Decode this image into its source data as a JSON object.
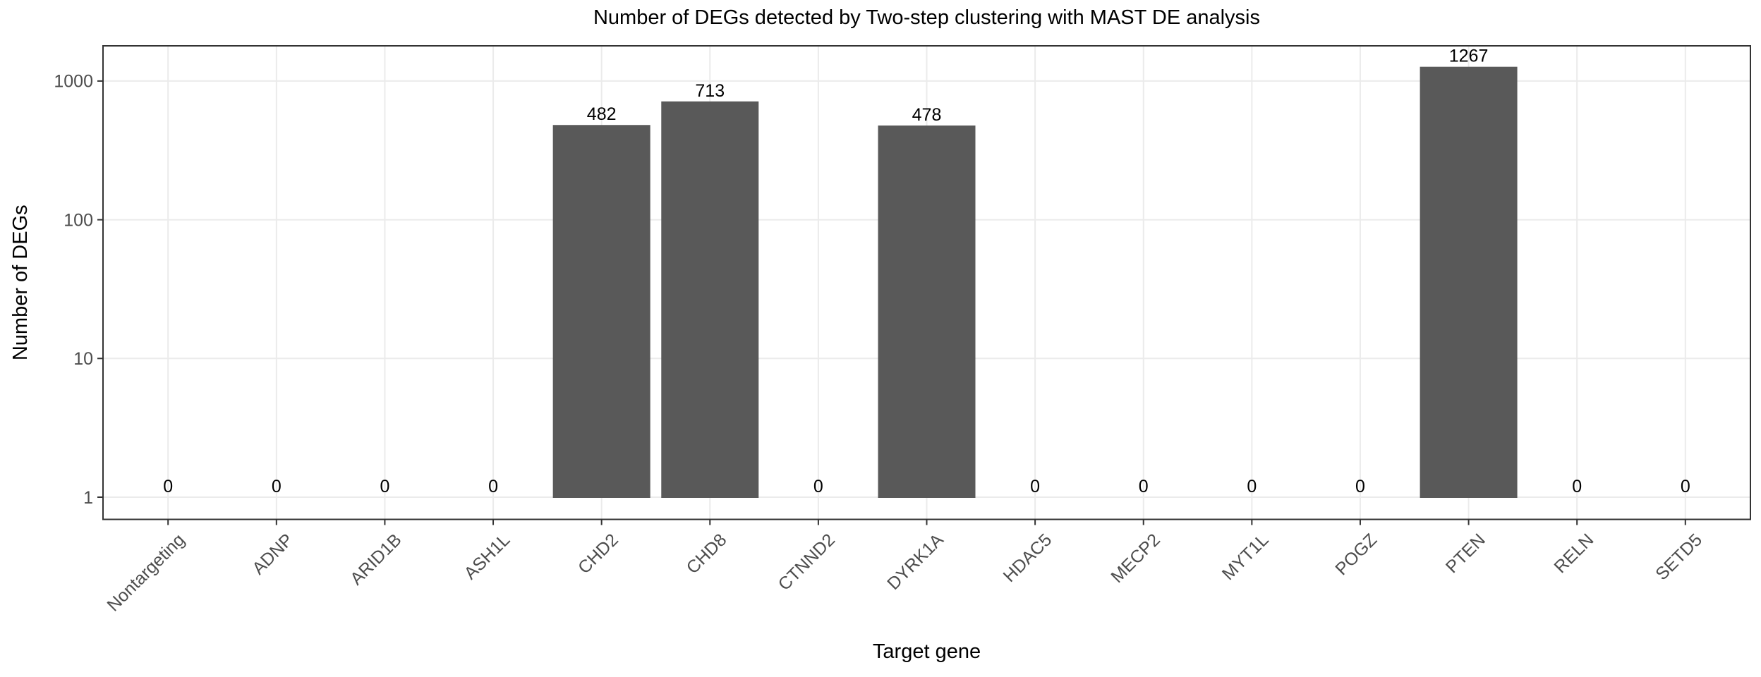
{
  "figure": {
    "title": "Number of DEGs detected by Two-step clustering with MAST DE analysis",
    "xlabel": "Target gene",
    "ylabel": "Number of DEGs"
  },
  "chart_data": {
    "type": "bar",
    "title": "Number of DEGs detected by Two-step clustering with MAST DE analysis",
    "xlabel": "Target gene",
    "ylabel": "Number of DEGs",
    "y_scale": "log10",
    "y_ticks": [
      "1",
      "10",
      "100",
      "1000"
    ],
    "y_tick_values": [
      1,
      10,
      100,
      1000
    ],
    "ylim": [
      0.7,
      1800
    ],
    "grid": "major-only",
    "legend": "none",
    "x_tick_angle_deg": 45,
    "categories": [
      "Nontargeting",
      "ADNP",
      "ARID1B",
      "ASH1L",
      "CHD2",
      "CHD8",
      "CTNND2",
      "DYRK1A",
      "HDAC5",
      "MECP2",
      "MYT1L",
      "POGZ",
      "PTEN",
      "RELN",
      "SETD5"
    ],
    "values": [
      0,
      0,
      0,
      0,
      482,
      713,
      0,
      478,
      0,
      0,
      0,
      0,
      1267,
      0,
      0
    ],
    "bar_labels": [
      "0",
      "0",
      "0",
      "0",
      "482",
      "713",
      "0",
      "478",
      "0",
      "0",
      "0",
      "0",
      "1267",
      "0",
      "0"
    ]
  },
  "style": {
    "background": "#ffffff",
    "bar_fill": "#595959",
    "panel_border": "#333333",
    "grid_color": "#ebebeb",
    "tick_color": "#333333",
    "tick_label_color": "#4d4d4d",
    "text_color": "#000000"
  }
}
